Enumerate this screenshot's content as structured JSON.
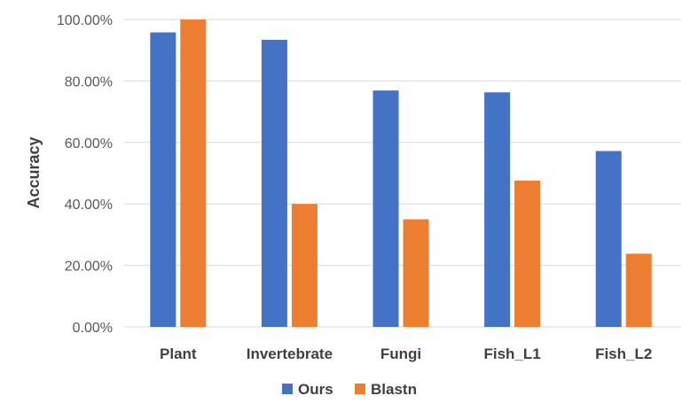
{
  "chart_data": {
    "type": "bar",
    "categories": [
      "Plant",
      "Invertebrate",
      "Fungi",
      "Fish_L1",
      "Fish_L2"
    ],
    "series": [
      {
        "name": "Ours",
        "values": [
          95.8,
          93.4,
          76.9,
          76.3,
          57.2
        ],
        "color": "#4472c4"
      },
      {
        "name": "Blastn",
        "values": [
          100.0,
          40.0,
          35.0,
          47.6,
          23.8
        ],
        "color": "#ed7d31"
      }
    ],
    "ylabel": "Accuracy",
    "xlabel": "",
    "ylim": [
      0,
      100
    ],
    "yticks": [
      "0.00%",
      "20.00%",
      "40.00%",
      "60.00%",
      "80.00%",
      "100.00%"
    ],
    "ytick_values": [
      0,
      20,
      40,
      60,
      80,
      100
    ],
    "grid": true,
    "legend_position": "bottom-center"
  }
}
